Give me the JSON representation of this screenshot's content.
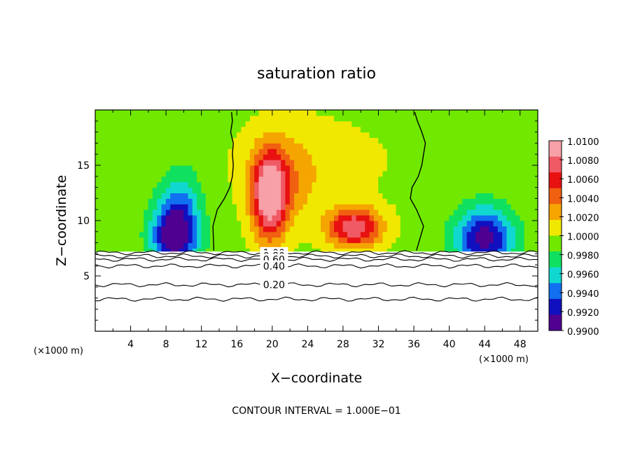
{
  "chart_data": {
    "type": "heatmap",
    "title": "saturation ratio",
    "xlabel": "X−coordinate",
    "ylabel": "Z−coordinate",
    "x_unit": "(×1000 m)",
    "y_unit": "(×1000 m)",
    "xlim": [
      0,
      50
    ],
    "ylim": [
      0,
      20
    ],
    "x_ticks": [
      4,
      8,
      12,
      16,
      20,
      24,
      28,
      32,
      36,
      40,
      44,
      48
    ],
    "y_ticks": [
      5,
      10,
      15
    ],
    "colorbar": {
      "levels": [
        "1.0100",
        "1.0080",
        "1.0060",
        "1.0040",
        "1.0020",
        "1.0000",
        "0.9980",
        "0.9960",
        "0.9940",
        "0.9920",
        "0.9900"
      ],
      "colors": [
        "#f7a0a8",
        "#f05a64",
        "#e81010",
        "#f06010",
        "#f5a500",
        "#f0e800",
        "#70e800",
        "#10e060",
        "#10d8d0",
        "#1070f0",
        "#1010c0",
        "#500090"
      ]
    },
    "fields": {
      "background": 0.9995,
      "blobs": [
        {
          "cx": 9,
          "cz": 8.6,
          "sx": 2.6,
          "sz": 3.2,
          "amp": -0.0105
        },
        {
          "cx": 9.8,
          "cz": 12.0,
          "sx": 2.2,
          "sz": 3.4,
          "amp": -0.003
        },
        {
          "cx": 44,
          "cz": 8.4,
          "sx": 3.3,
          "sz": 2.8,
          "amp": -0.0095
        },
        {
          "cx": 19.7,
          "cz": 12.3,
          "sx": 1.9,
          "sz": 3.8,
          "amp": 0.0115
        },
        {
          "cx": 21.5,
          "cz": 13.5,
          "sx": 3.6,
          "sz": 4.0,
          "amp": 0.003
        },
        {
          "cx": 29.3,
          "cz": 9.4,
          "sx": 3.0,
          "sz": 1.8,
          "amp": 0.0095
        },
        {
          "cx": 24.5,
          "cz": 15.5,
          "sx": 9.0,
          "sz": 4.0,
          "amp": 0.0012
        }
      ],
      "surface_z": 7.2
    },
    "contour_1_00_boundary": {
      "left_x": [
        15.4,
        15.5,
        15.3,
        15.6,
        15.5,
        15.6,
        15.5,
        15.2,
        14.6,
        13.8,
        13.3,
        13.4
      ],
      "right_x": [
        36.1,
        36.4,
        36.9,
        37.3,
        37.1,
        36.9,
        36.5,
        35.8,
        35.6,
        36.3,
        37.1,
        36.3
      ],
      "z": [
        19.8,
        19.0,
        18.0,
        17.0,
        16.0,
        15.0,
        14.0,
        13.0,
        12.0,
        11.0,
        9.5,
        7.3
      ]
    },
    "lower_contours": [
      {
        "label": "1.00",
        "z": 7.1
      },
      {
        "label": "0.80",
        "z": 6.8
      },
      {
        "label": "0.60",
        "z": 6.5
      },
      {
        "label": "0.40",
        "z": 5.9
      },
      {
        "label": "0.20",
        "z": 4.2
      },
      {
        "label": "",
        "z": 2.9
      }
    ],
    "contour_interval_text": "CONTOUR INTERVAL = 1.000E−01"
  }
}
